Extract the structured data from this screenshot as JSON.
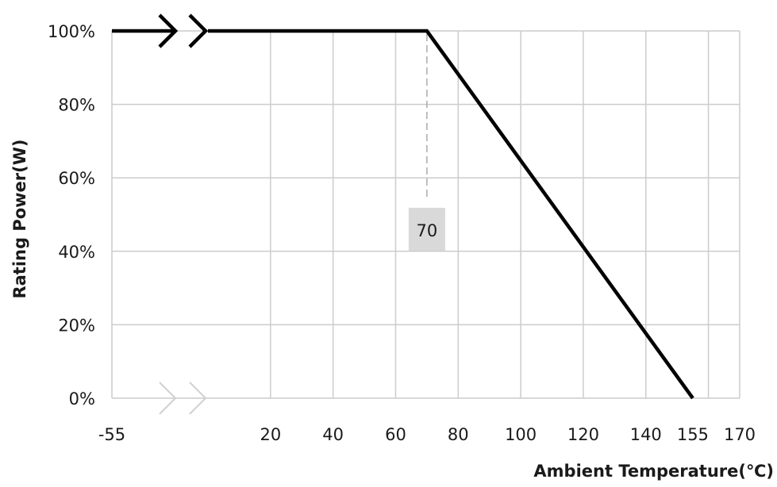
{
  "chart_data": {
    "type": "line",
    "title": "",
    "xlabel": "Ambient Temperature(℃)",
    "ylabel": "Rating Power(W)",
    "x_ticks": [
      "-55",
      "20",
      "40",
      "60",
      "80",
      "100",
      "120",
      "140",
      "155",
      "170"
    ],
    "x_tick_values": [
      0,
      20,
      40,
      60,
      80,
      100,
      120,
      140,
      155,
      170
    ],
    "x_grid_values": [
      20,
      40,
      60,
      80,
      100,
      120,
      140,
      160,
      170
    ],
    "y_ticks": [
      "0%",
      "20%",
      "40%",
      "60%",
      "80%",
      "100%"
    ],
    "y_tick_values": [
      0,
      20,
      40,
      60,
      80,
      100
    ],
    "xlim": [
      0,
      170
    ],
    "ylim": [
      0,
      100
    ],
    "grid": true,
    "axis_break": "between -55 and 20",
    "series": [
      {
        "points": [
          [
            0,
            100
          ],
          [
            70,
            100
          ],
          [
            155,
            0
          ]
        ],
        "color": "#000000"
      }
    ],
    "annotations": [
      {
        "label": "70",
        "x": 70,
        "style": "dashed vertical guide with grey label box"
      }
    ],
    "colors": {
      "line": "#000000",
      "grid": "#cccccc",
      "break_marks_faint": "#d0d0d0",
      "label_box": "#d9d9d9"
    }
  }
}
